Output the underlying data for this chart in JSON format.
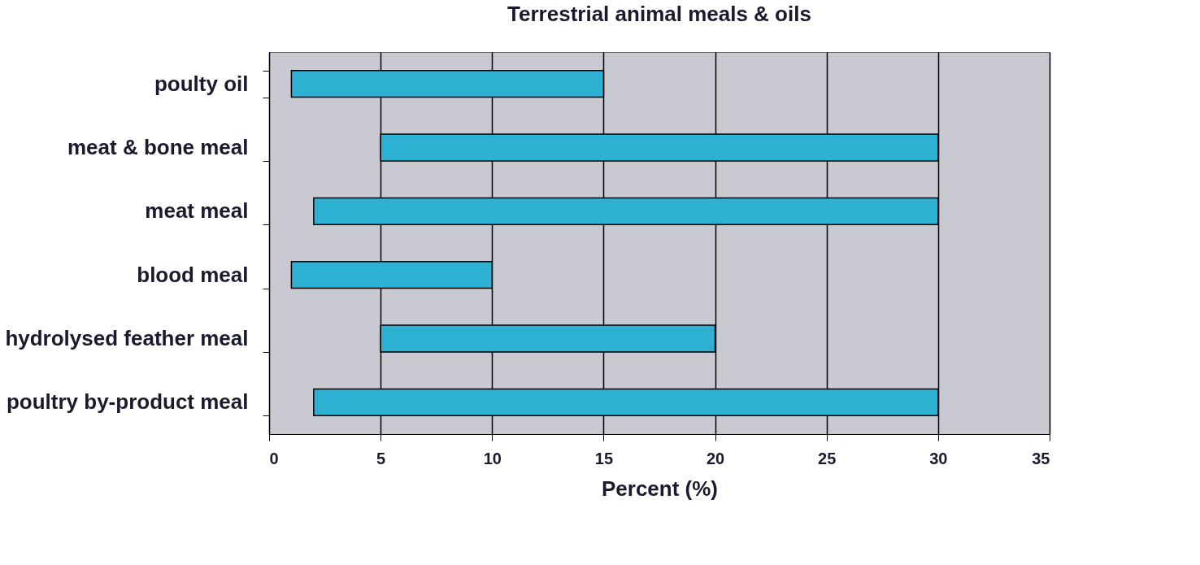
{
  "chart_data": {
    "type": "bar",
    "title": "Terrestrial animal meals & oils",
    "xlabel": "Percent (%)",
    "orientation": "horizontal",
    "categories": [
      "poulty oil",
      "meat & bone meal",
      "meat meal",
      "blood meal",
      "hydrolysed feather meal",
      "poultry by-product meal"
    ],
    "base": [
      1,
      5,
      2,
      1,
      5,
      2
    ],
    "values": [
      14,
      25,
      28,
      9,
      15,
      28
    ],
    "color": "#2eb0d2",
    "xlim": [
      0,
      35
    ],
    "xticks": [
      0,
      5,
      10,
      15,
      20,
      25,
      30,
      35
    ],
    "grid": "x"
  }
}
